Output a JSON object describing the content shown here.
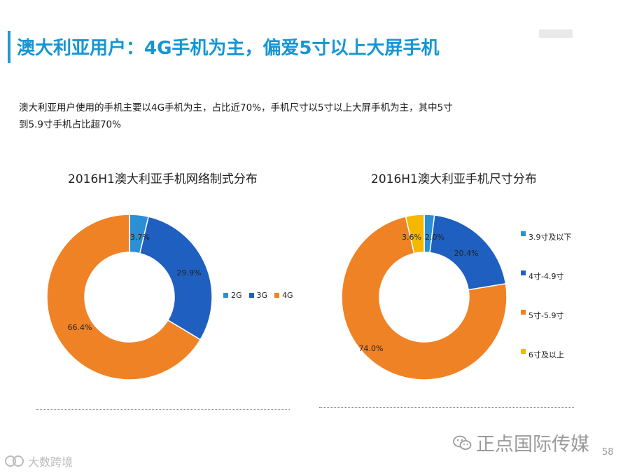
{
  "header": {
    "title": "澳大利亚用户：4G手机为主，偏爱5寸以上大屏手机"
  },
  "summary": {
    "line1": "澳大利亚用户使用的手机主要以4G手机为主，占比近70%，手机尺寸以5寸以上大屏手机为主，其中5寸",
    "line2": "到5.9寸手机占比超70%"
  },
  "chart_data": [
    {
      "type": "pie",
      "variant": "donut",
      "title": "2016H1澳大利亚手机网络制式分布",
      "categories": [
        "2G",
        "3G",
        "4G"
      ],
      "values": [
        3.7,
        29.9,
        66.4
      ],
      "labels": [
        "3.7%",
        "29.9%",
        "66.4%"
      ],
      "colors": [
        "#2b8fd6",
        "#1f5fbf",
        "#f08226"
      ],
      "legend_position": "right"
    },
    {
      "type": "pie",
      "variant": "donut",
      "title": "2016H1澳大利亚手机尺寸分布",
      "categories": [
        "3.9寸及以下",
        "4寸-4.9寸",
        "5寸-5.9寸",
        "6寸及以上"
      ],
      "values": [
        2.0,
        20.4,
        74.0,
        3.6
      ],
      "labels": [
        "2.0%",
        "20.4%",
        "74.0%",
        "3.6%"
      ],
      "colors": [
        "#2b8fd6",
        "#1f5fbf",
        "#f08226",
        "#f5b800"
      ],
      "legend_position": "right"
    }
  ],
  "footer": {
    "brand": "正点国际传媒",
    "page_number": "58",
    "watermark": "大数跨境"
  },
  "colors": {
    "accent": "#1596d3"
  }
}
